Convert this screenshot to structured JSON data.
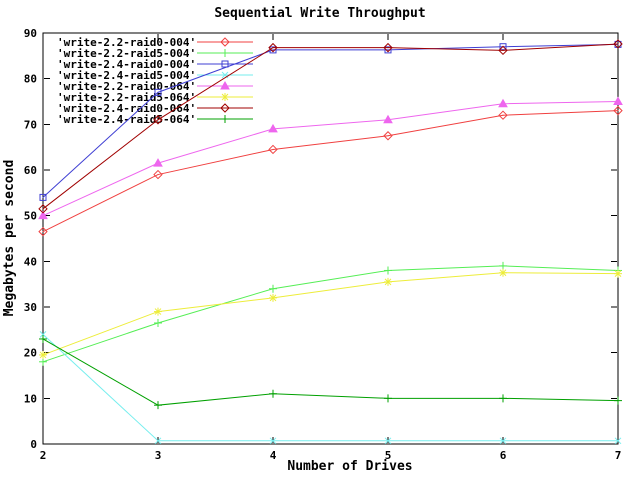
{
  "chart_data": {
    "type": "line",
    "title": "Sequential Write Throughput",
    "xlabel": "Number of Drives",
    "ylabel": "Megabytes per second",
    "x": [
      2,
      3,
      4,
      5,
      6,
      7
    ],
    "xlim": [
      2,
      7
    ],
    "ylim": [
      0,
      90
    ],
    "xticks": [
      2,
      3,
      4,
      5,
      6,
      7
    ],
    "yticks": [
      0,
      10,
      20,
      30,
      40,
      50,
      60,
      70,
      80,
      90
    ],
    "grid": false,
    "legend_position": "top-left-inside",
    "background_color": "#ffffff",
    "axis_color": "#000000",
    "series": [
      {
        "name": "'write-2.2-raid0-004'",
        "color": "#f04040",
        "marker": "diamond-open",
        "values": [
          46.5,
          59,
          64.5,
          67.5,
          72,
          73
        ]
      },
      {
        "name": "'write-2.2-raid5-004'",
        "color": "#55ee55",
        "marker": "plus",
        "values": [
          18,
          26.5,
          34,
          38,
          39,
          38
        ]
      },
      {
        "name": "'write-2.4-raid0-004'",
        "color": "#3f3fd3",
        "marker": "square-open",
        "values": [
          54,
          77,
          86.3,
          86.3,
          87,
          87.5
        ]
      },
      {
        "name": "'write-2.4-raid5-004'",
        "color": "#76eeee",
        "marker": "x-cross",
        "values": [
          24,
          0.7,
          0.7,
          0.7,
          0.7,
          0.7
        ]
      },
      {
        "name": "'write-2.2-raid0-064'",
        "color": "#ee66ee",
        "marker": "triangle-filled",
        "values": [
          50,
          61.5,
          69,
          71,
          74.5,
          75
        ]
      },
      {
        "name": "'write-2.2-raid5-064'",
        "color": "#eded3a",
        "marker": "asterisk",
        "values": [
          19.5,
          29,
          32,
          35.5,
          37.5,
          37.3
        ]
      },
      {
        "name": "'write-2.4-raid0-064'",
        "color": "#a00000",
        "marker": "diamond-open",
        "values": [
          51.5,
          71,
          86.8,
          86.8,
          86.2,
          87.6
        ]
      },
      {
        "name": "'write-2.4-raid5-064'",
        "color": "#00a000",
        "marker": "plus",
        "values": [
          23,
          8.5,
          11,
          10,
          10,
          9.5
        ]
      }
    ]
  }
}
